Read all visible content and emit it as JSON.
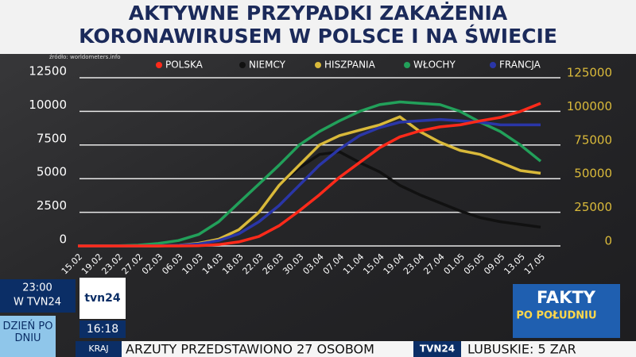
{
  "chart_data": {
    "type": "line",
    "title": [
      "AKTYWNE PRZYPADKI ZAKAŻENIA",
      "KORONAWIRUSEM W POLSCE I NA ŚWIECIE"
    ],
    "source": "źródło: worldometers.info",
    "categories": [
      "15.02",
      "19.02",
      "23.02",
      "27.02",
      "02.03",
      "06.03",
      "10.03",
      "14.03",
      "18.03",
      "22.03",
      "26.03",
      "30.03",
      "03.04",
      "07.04",
      "11.04",
      "15.04",
      "19.04",
      "23.04",
      "27.04",
      "01.05",
      "05.05",
      "09.05",
      "13.05",
      "17.05"
    ],
    "ylim": [
      0,
      12500
    ],
    "yticks": [
      0,
      2500,
      5000,
      7500,
      10000,
      12500
    ],
    "y2lim": [
      0,
      125000
    ],
    "y2ticks": [
      0,
      25000,
      50000,
      75000,
      100000,
      125000
    ],
    "grid": true,
    "series": [
      {
        "name": "POLSKA",
        "color": "#ff2a1a",
        "axis": "y",
        "values": [
          0,
          0,
          0,
          0,
          0,
          0,
          20,
          100,
          300,
          700,
          1500,
          2600,
          3800,
          5100,
          6200,
          7300,
          8100,
          8550,
          8850,
          9000,
          9300,
          9550,
          10000,
          10600
        ]
      },
      {
        "name": "NIEMCY",
        "color": "#111111",
        "axis": "y2",
        "values": [
          0,
          0,
          0,
          10,
          100,
          600,
          1500,
          4000,
          12000,
          25000,
          45000,
          58000,
          68000,
          70000,
          62000,
          55000,
          45000,
          38000,
          32000,
          26000,
          21000,
          18000,
          16000,
          14000
        ]
      },
      {
        "name": "HISZPANIA",
        "color": "#d9b93a",
        "axis": "y2",
        "values": [
          0,
          0,
          0,
          0,
          0,
          500,
          2000,
          5000,
          12000,
          25000,
          45000,
          60000,
          75000,
          82000,
          86000,
          90000,
          96000,
          85000,
          77000,
          71000,
          68000,
          62000,
          56000,
          54000
        ]
      },
      {
        "name": "WŁOCHY",
        "color": "#22a05a",
        "axis": "y2",
        "values": [
          0,
          0,
          200,
          600,
          1800,
          4000,
          8500,
          18000,
          32000,
          46000,
          60000,
          75000,
          85000,
          93000,
          100000,
          105000,
          107000,
          106000,
          105000,
          100000,
          92000,
          85000,
          75000,
          63000
        ]
      },
      {
        "name": "FRANCJA",
        "color": "#2a36a8",
        "axis": "y2",
        "values": [
          0,
          0,
          0,
          0,
          100,
          500,
          1500,
          4000,
          9000,
          18000,
          30000,
          45000,
          60000,
          72000,
          82000,
          88000,
          92000,
          93000,
          94000,
          93000,
          92000,
          90000,
          90000,
          90000
        ]
      }
    ]
  },
  "overlay": {
    "program_time": "23:00",
    "program_channel": "W TVN24",
    "program_name": "DZIEŃ PO DNIU",
    "logo": "tvn24",
    "clock": "16:18",
    "ticker_tag": "KRAJ",
    "ticker_text": "ARZUTY PRZEDSTAWIONO 27 OSOBOM",
    "ticker_channel": "TVN24",
    "ticker_next": "LUBUSKIE: 5 ZAR",
    "show_title": "FAKTY",
    "show_subtitle": "PO POŁUDNIU"
  }
}
